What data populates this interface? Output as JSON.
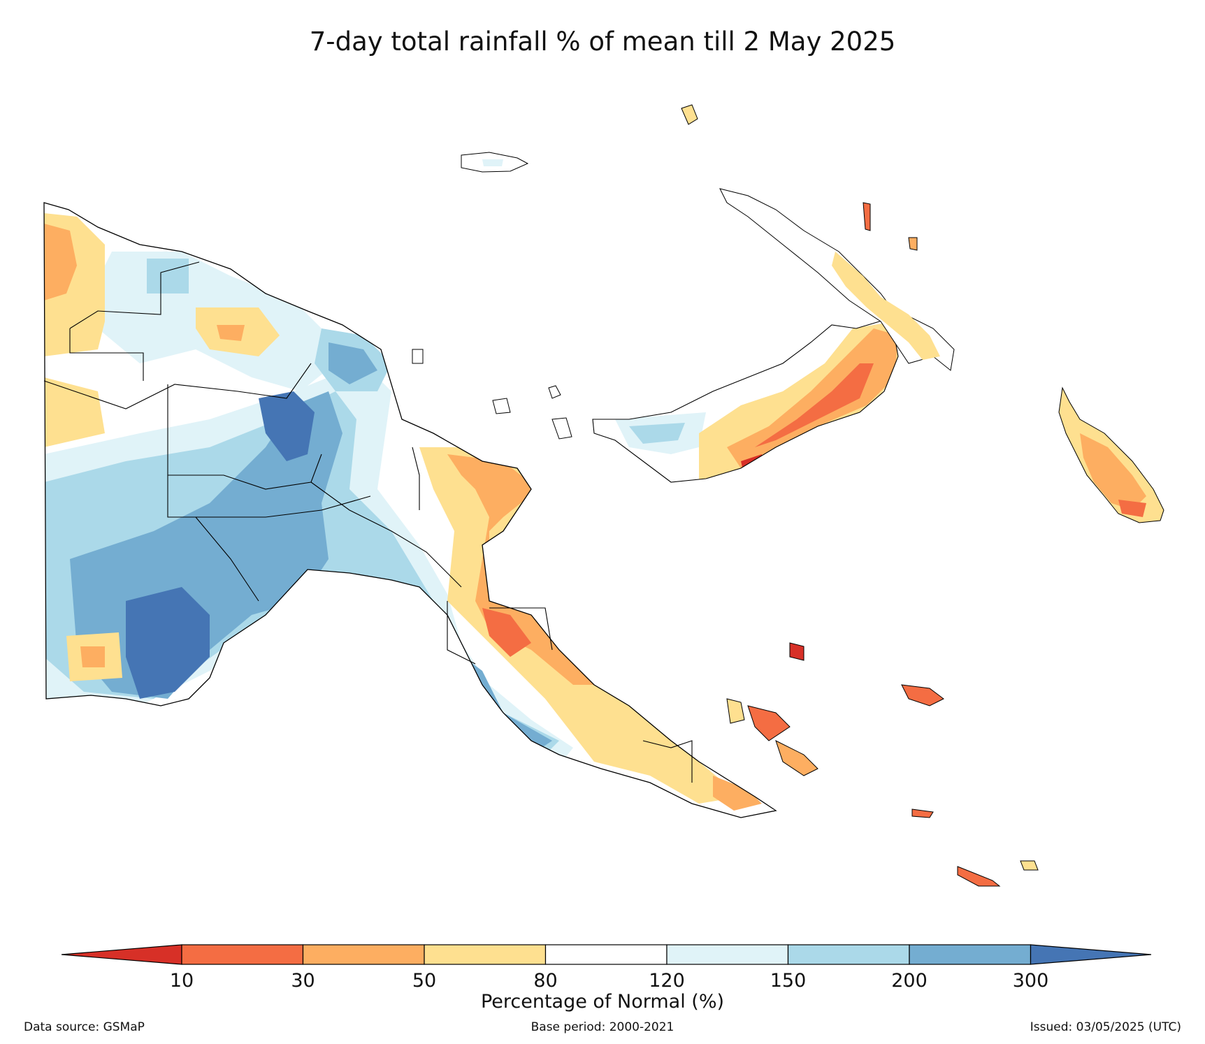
{
  "title": "7-day total rainfall % of mean till 2 May 2025",
  "colorbar": {
    "label": "Percentage of Normal (%)",
    "ticks": [
      "10",
      "30",
      "50",
      "80",
      "120",
      "150",
      "200",
      "300"
    ],
    "colors": {
      "below_10": "#d73027",
      "10_30": "#f46d43",
      "30_50": "#fdae61",
      "50_80": "#fee090",
      "80_120": "#ffffff",
      "120_150": "#e0f3f8",
      "150_200": "#abd9e9",
      "200_300": "#74add1",
      "above_300": "#4575b4"
    }
  },
  "footer": {
    "data_source": "Data source: GSMaP",
    "base_period": "Base period: 2000-2021",
    "issued": "Issued: 03/05/2025 (UTC)"
  }
}
